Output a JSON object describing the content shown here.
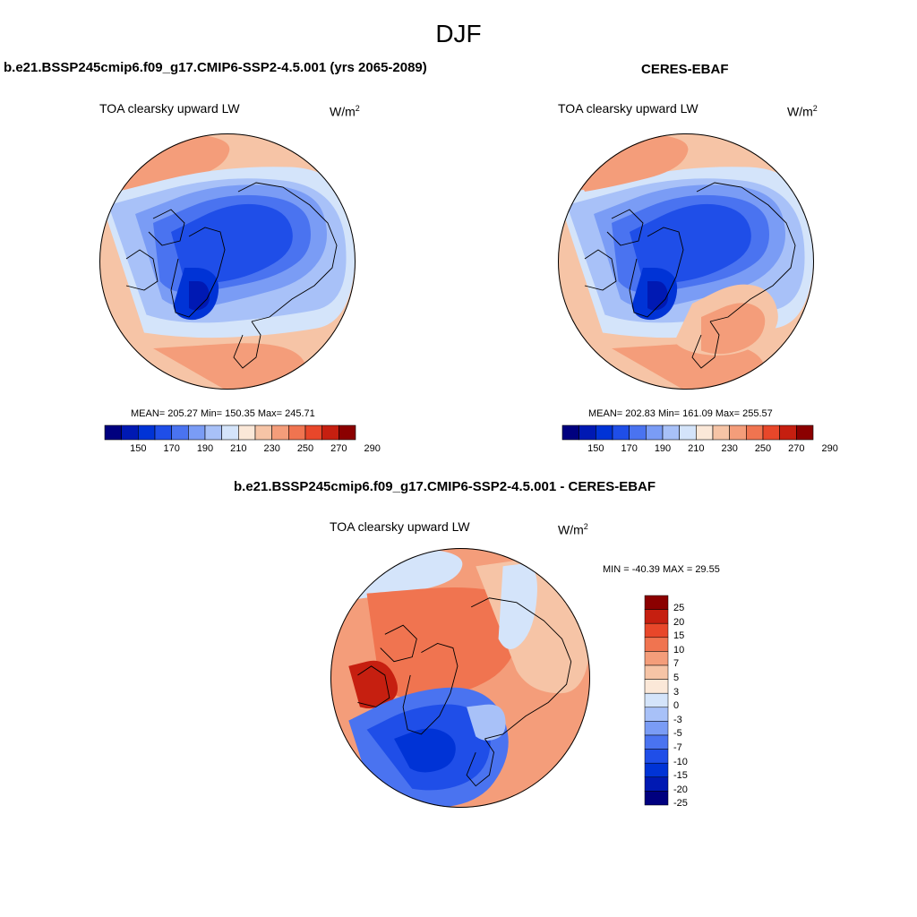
{
  "title": "DJF",
  "colors": {
    "sequential": [
      "#00007f",
      "#0019b3",
      "#0033d6",
      "#1f4ee8",
      "#4a73f0",
      "#7a9cf5",
      "#a8c1f8",
      "#d4e4fa",
      "#fbe8d8",
      "#f6c4a6",
      "#f49d7a",
      "#f07450",
      "#e8472a",
      "#c61f10",
      "#8b0000"
    ],
    "diverging": [
      "#00007f",
      "#0019b3",
      "#0033d6",
      "#1f4ee8",
      "#4a73f0",
      "#7a9cf5",
      "#a8c1f8",
      "#d4e4fa",
      "#fbe8d8",
      "#f6c4a6",
      "#f49d7a",
      "#f07450",
      "#e8472a",
      "#c61f10",
      "#8b0000"
    ],
    "land_outline": "#000000"
  },
  "panels": [
    {
      "id": "model",
      "title": "b.e21.BSSP245cmip6.f09_g17.CMIP6-SSP2-4.5.001 (yrs 2065-2089)",
      "variable": "TOA clearsky upward LW",
      "units_base": "W/m",
      "units_exp": "2",
      "stats": "MEAN= 205.27  Min= 150.35  Max= 245.71",
      "colorbar_labels": [
        "150",
        "170",
        "190",
        "210",
        "230",
        "250",
        "270",
        "290"
      ]
    },
    {
      "id": "obs",
      "title": "CERES-EBAF",
      "variable": "TOA clearsky upward LW",
      "units_base": "W/m",
      "units_exp": "2",
      "stats": "MEAN= 202.83  Min= 161.09  Max= 255.57",
      "colorbar_labels": [
        "150",
        "170",
        "190",
        "210",
        "230",
        "250",
        "270",
        "290"
      ]
    },
    {
      "id": "diff",
      "title": "b.e21.BSSP245cmip6.f09_g17.CMIP6-SSP2-4.5.001 - CERES-EBAF",
      "variable": "TOA clearsky upward LW",
      "units_base": "W/m",
      "units_exp": "2",
      "stats": "MIN = -40.39 MAX =  29.55",
      "colorbar_labels": [
        "25",
        "20",
        "15",
        "10",
        "7",
        "5",
        "3",
        "0",
        "-3",
        "-5",
        "-7",
        "-10",
        "-15",
        "-20",
        "-25"
      ]
    }
  ]
}
